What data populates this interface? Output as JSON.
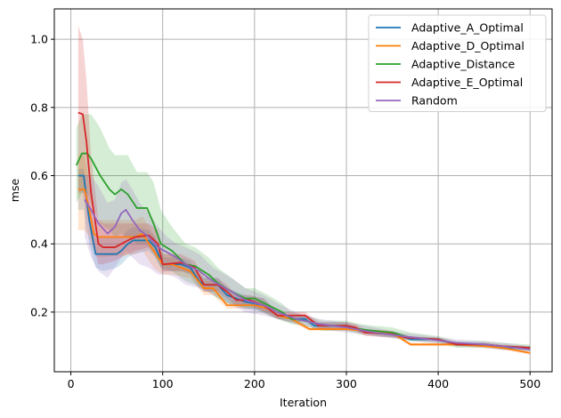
{
  "chart_data": {
    "type": "line",
    "title": "",
    "xlabel": "Iteration",
    "ylabel": "mse",
    "xlim": [
      -18,
      524
    ],
    "ylim": [
      0.025,
      1.089
    ],
    "xticks": [
      0,
      100,
      200,
      300,
      400,
      500
    ],
    "xtick_labels": [
      "0",
      "100",
      "200",
      "300",
      "400",
      "500"
    ],
    "yticks": [
      0.2,
      0.4,
      0.6,
      0.8,
      1.0
    ],
    "ytick_labels": [
      "0.2",
      "0.4",
      "0.6",
      "0.8",
      "1.0"
    ],
    "grid": true,
    "legend_position": "upper right",
    "series": [
      {
        "name": "Adaptive_A_Optimal",
        "color": "#1f77b4",
        "x": [
          8,
          14,
          20,
          27,
          35,
          50,
          55,
          62,
          68,
          85,
          92,
          100,
          120,
          130,
          140,
          145,
          160,
          170,
          190,
          210,
          225,
          240,
          255,
          265,
          300,
          315,
          340,
          355,
          370,
          400,
          420,
          450,
          470,
          500
        ],
        "y": [
          0.6,
          0.6,
          0.47,
          0.37,
          0.37,
          0.37,
          0.38,
          0.4,
          0.41,
          0.41,
          0.39,
          0.34,
          0.34,
          0.33,
          0.29,
          0.28,
          0.28,
          0.25,
          0.23,
          0.22,
          0.19,
          0.18,
          0.18,
          0.16,
          0.16,
          0.145,
          0.14,
          0.135,
          0.12,
          0.12,
          0.105,
          0.105,
          0.095,
          0.095
        ],
        "band_lower": [
          0.5,
          0.5,
          0.4,
          0.33,
          0.32,
          0.33,
          0.34,
          0.36,
          0.37,
          0.38,
          0.36,
          0.32,
          0.32,
          0.31,
          0.27,
          0.26,
          0.26,
          0.23,
          0.21,
          0.2,
          0.18,
          0.17,
          0.17,
          0.15,
          0.15,
          0.14,
          0.13,
          0.125,
          0.115,
          0.115,
          0.1,
          0.1,
          0.09,
          0.09
        ],
        "band_upper": [
          0.62,
          0.62,
          0.52,
          0.42,
          0.42,
          0.42,
          0.42,
          0.44,
          0.45,
          0.44,
          0.42,
          0.36,
          0.36,
          0.35,
          0.31,
          0.3,
          0.3,
          0.27,
          0.25,
          0.24,
          0.2,
          0.19,
          0.19,
          0.17,
          0.17,
          0.15,
          0.145,
          0.14,
          0.125,
          0.125,
          0.11,
          0.11,
          0.1,
          0.1
        ]
      },
      {
        "name": "Adaptive_D_Optimal",
        "color": "#ff7f0e",
        "x": [
          8,
          15,
          20,
          25,
          30,
          70,
          78,
          90,
          100,
          110,
          130,
          145,
          155,
          170,
          200,
          215,
          225,
          240,
          260,
          300,
          320,
          345,
          355,
          370,
          420,
          450,
          470,
          500
        ],
        "y": [
          0.56,
          0.56,
          0.5,
          0.43,
          0.42,
          0.42,
          0.43,
          0.38,
          0.34,
          0.34,
          0.32,
          0.27,
          0.27,
          0.22,
          0.22,
          0.21,
          0.19,
          0.18,
          0.15,
          0.15,
          0.145,
          0.14,
          0.13,
          0.105,
          0.105,
          0.1,
          0.095,
          0.08
        ],
        "band_lower": [
          0.44,
          0.44,
          0.42,
          0.38,
          0.36,
          0.37,
          0.38,
          0.33,
          0.31,
          0.31,
          0.3,
          0.25,
          0.25,
          0.21,
          0.21,
          0.2,
          0.18,
          0.17,
          0.145,
          0.145,
          0.14,
          0.135,
          0.125,
          0.1,
          0.1,
          0.095,
          0.09,
          0.075
        ],
        "band_upper": [
          0.66,
          0.66,
          0.58,
          0.48,
          0.47,
          0.47,
          0.48,
          0.43,
          0.37,
          0.37,
          0.34,
          0.29,
          0.29,
          0.23,
          0.23,
          0.22,
          0.2,
          0.19,
          0.155,
          0.155,
          0.15,
          0.145,
          0.135,
          0.11,
          0.11,
          0.105,
          0.1,
          0.085
        ]
      },
      {
        "name": "Adaptive_Distance",
        "color": "#2ca02c",
        "x": [
          6,
          12,
          18,
          22,
          32,
          42,
          48,
          55,
          62,
          72,
          83,
          90,
          98,
          110,
          125,
          135,
          150,
          160,
          175,
          190,
          200,
          215,
          230,
          240,
          255,
          275,
          300,
          315,
          330,
          350,
          370,
          400,
          420,
          450,
          470,
          500
        ],
        "y": [
          0.63,
          0.665,
          0.665,
          0.65,
          0.6,
          0.56,
          0.545,
          0.56,
          0.545,
          0.505,
          0.505,
          0.46,
          0.4,
          0.38,
          0.34,
          0.335,
          0.31,
          0.285,
          0.26,
          0.24,
          0.24,
          0.22,
          0.2,
          0.18,
          0.175,
          0.16,
          0.16,
          0.15,
          0.145,
          0.14,
          0.125,
          0.12,
          0.105,
          0.105,
          0.1,
          0.095
        ],
        "band_lower": [
          0.52,
          0.55,
          0.55,
          0.52,
          0.46,
          0.44,
          0.42,
          0.43,
          0.42,
          0.4,
          0.4,
          0.37,
          0.33,
          0.32,
          0.29,
          0.28,
          0.26,
          0.24,
          0.22,
          0.21,
          0.21,
          0.19,
          0.175,
          0.165,
          0.16,
          0.145,
          0.145,
          0.135,
          0.13,
          0.125,
          0.115,
          0.11,
          0.095,
          0.095,
          0.09,
          0.085
        ],
        "band_upper": [
          0.74,
          0.78,
          0.78,
          0.78,
          0.74,
          0.68,
          0.66,
          0.66,
          0.66,
          0.61,
          0.61,
          0.58,
          0.5,
          0.45,
          0.4,
          0.39,
          0.36,
          0.33,
          0.3,
          0.27,
          0.27,
          0.25,
          0.225,
          0.2,
          0.19,
          0.175,
          0.175,
          0.165,
          0.16,
          0.155,
          0.14,
          0.13,
          0.115,
          0.115,
          0.11,
          0.105
        ]
      },
      {
        "name": "Adaptive_E_Optimal",
        "color": "#d62728",
        "x": [
          8,
          13,
          17,
          22,
          30,
          35,
          48,
          55,
          62,
          70,
          85,
          95,
          100,
          120,
          135,
          145,
          160,
          170,
          180,
          195,
          210,
          225,
          255,
          270,
          300,
          310,
          320,
          350,
          365,
          400,
          420,
          450,
          470,
          500
        ],
        "y": [
          0.785,
          0.78,
          0.7,
          0.55,
          0.4,
          0.39,
          0.39,
          0.4,
          0.41,
          0.42,
          0.425,
          0.4,
          0.34,
          0.345,
          0.33,
          0.28,
          0.28,
          0.26,
          0.235,
          0.235,
          0.22,
          0.19,
          0.19,
          0.16,
          0.16,
          0.155,
          0.14,
          0.135,
          0.125,
          0.12,
          0.105,
          0.105,
          0.1,
          0.095
        ],
        "band_lower": [
          0.55,
          0.55,
          0.5,
          0.42,
          0.34,
          0.34,
          0.35,
          0.36,
          0.37,
          0.38,
          0.39,
          0.36,
          0.32,
          0.32,
          0.31,
          0.26,
          0.26,
          0.24,
          0.22,
          0.22,
          0.2,
          0.18,
          0.18,
          0.15,
          0.15,
          0.145,
          0.13,
          0.125,
          0.12,
          0.115,
          0.1,
          0.1,
          0.095,
          0.09
        ],
        "band_upper": [
          1.04,
          1.0,
          0.88,
          0.66,
          0.47,
          0.46,
          0.46,
          0.46,
          0.46,
          0.46,
          0.46,
          0.44,
          0.37,
          0.37,
          0.35,
          0.3,
          0.3,
          0.28,
          0.25,
          0.25,
          0.24,
          0.2,
          0.2,
          0.17,
          0.17,
          0.165,
          0.15,
          0.145,
          0.13,
          0.125,
          0.11,
          0.11,
          0.105,
          0.1
        ]
      },
      {
        "name": "Random",
        "color": "#9467bd",
        "x": [
          15,
          22,
          30,
          40,
          48,
          55,
          60,
          67,
          75,
          85,
          95,
          105,
          115,
          125,
          140,
          155,
          175,
          190,
          210,
          225,
          245,
          270,
          300,
          330,
          360,
          390,
          420,
          450,
          470,
          500
        ],
        "y": [
          0.53,
          0.5,
          0.46,
          0.43,
          0.45,
          0.49,
          0.5,
          0.47,
          0.44,
          0.42,
          0.39,
          0.375,
          0.36,
          0.34,
          0.32,
          0.29,
          0.26,
          0.235,
          0.22,
          0.2,
          0.18,
          0.165,
          0.155,
          0.14,
          0.13,
          0.12,
          0.11,
          0.105,
          0.1,
          0.09
        ],
        "band_lower": [
          0.42,
          0.36,
          0.32,
          0.3,
          0.33,
          0.36,
          0.38,
          0.36,
          0.34,
          0.33,
          0.31,
          0.31,
          0.3,
          0.28,
          0.27,
          0.25,
          0.22,
          0.2,
          0.19,
          0.18,
          0.165,
          0.15,
          0.14,
          0.13,
          0.12,
          0.11,
          0.1,
          0.095,
          0.09,
          0.085
        ],
        "band_upper": [
          0.6,
          0.6,
          0.57,
          0.52,
          0.53,
          0.58,
          0.59,
          0.56,
          0.52,
          0.49,
          0.45,
          0.42,
          0.4,
          0.39,
          0.37,
          0.33,
          0.3,
          0.27,
          0.25,
          0.225,
          0.2,
          0.18,
          0.17,
          0.155,
          0.14,
          0.13,
          0.12,
          0.115,
          0.11,
          0.1
        ]
      }
    ]
  },
  "legend": {
    "items": [
      {
        "label": "Adaptive_A_Optimal",
        "color": "#1f77b4"
      },
      {
        "label": "Adaptive_D_Optimal",
        "color": "#ff7f0e"
      },
      {
        "label": "Adaptive_Distance",
        "color": "#2ca02c"
      },
      {
        "label": "Adaptive_E_Optimal",
        "color": "#d62728"
      },
      {
        "label": "Random",
        "color": "#9467bd"
      }
    ]
  },
  "axes": {
    "xlabel": "Iteration",
    "ylabel": "mse"
  }
}
